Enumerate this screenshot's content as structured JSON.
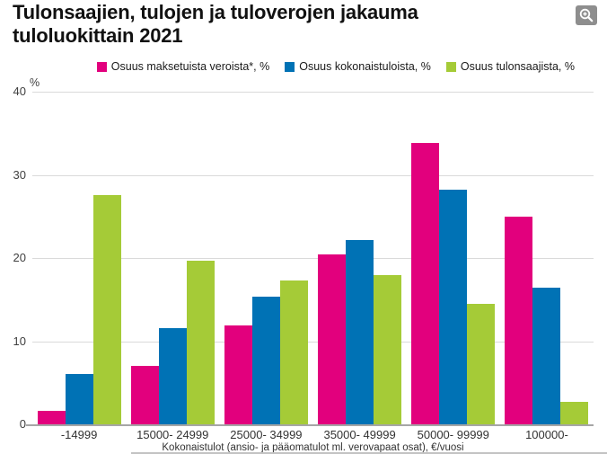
{
  "header": {
    "title": "Tulonsaajien, tulojen ja tuloverojen jakauma tuloluokittain 2021"
  },
  "colors": {
    "taxes": "#e2007d",
    "income": "#0072b5",
    "recipients": "#a5cb37",
    "gridline": "#dadada",
    "axis_line": "#a6a6a6",
    "zoom_button_bg": "#8e8e8e"
  },
  "chart_data": {
    "type": "bar",
    "title": "Tulonsaajien, tulojen ja tuloverojen jakauma tuloluokittain 2021",
    "categories": [
      "-14999",
      "15000- 24999",
      "25000- 34999",
      "35000- 49999",
      "50000- 99999",
      "100000-"
    ],
    "series": [
      {
        "name": "Osuus maksetuista veroista*, %",
        "color": "#e2007d",
        "values": [
          1.6,
          7.0,
          11.9,
          20.4,
          33.8,
          25.0
        ]
      },
      {
        "name": "Osuus kokonaistuloista, %",
        "color": "#0072b5",
        "values": [
          6.1,
          11.6,
          15.4,
          22.2,
          28.2,
          16.4
        ]
      },
      {
        "name": "Osuus tulonsaajista, %",
        "color": "#a5cb37",
        "values": [
          27.6,
          19.7,
          17.3,
          17.9,
          14.5,
          2.7
        ]
      }
    ],
    "ylabel": "%",
    "xlabel": "Kokonaistulot (ansio- ja pääomatulot ml. verovapaat osat), €/vuosi",
    "ylim": [
      0,
      40
    ],
    "yticks": [
      0,
      10,
      20,
      30,
      40
    ],
    "grid": true,
    "legend_position": "top"
  }
}
